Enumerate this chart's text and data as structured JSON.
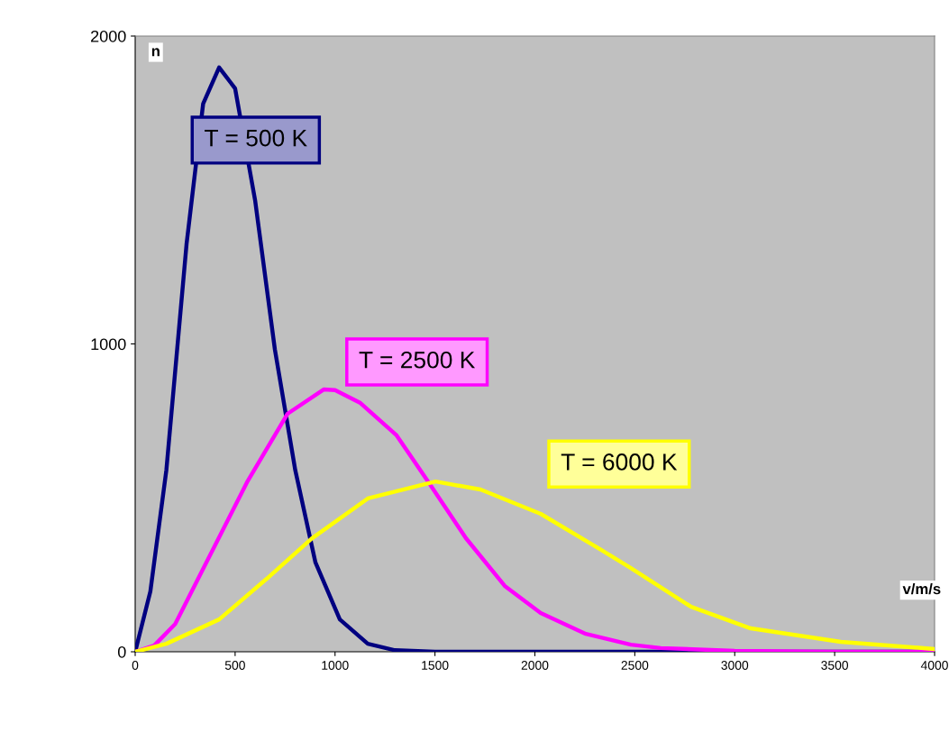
{
  "chart_data": {
    "type": "line",
    "xlabel": "v/m/s",
    "ylabel": "n",
    "xlim": [
      0,
      4000
    ],
    "xticks": [
      0,
      500,
      1000,
      1500,
      2000,
      2500,
      3000,
      3500,
      4000
    ],
    "ylim": [
      0,
      2000
    ],
    "yticks": [
      0,
      1000,
      2000
    ],
    "grid": false,
    "legend": false,
    "marker": "none",
    "line_style": "solid",
    "series": [
      {
        "name": "T = 500 K",
        "color": "#000080",
        "x": [
          0,
          76,
          156,
          257,
          340,
          420,
          500,
          600,
          699,
          801,
          902,
          1024,
          1164,
          1300,
          1500,
          2000,
          3000,
          4000
        ],
        "values": [
          0,
          196,
          590,
          1324,
          1780,
          1898,
          1830,
          1467,
          982,
          590,
          290,
          105,
          26,
          5,
          0,
          0,
          0,
          0
        ]
      },
      {
        "name": "T = 2500 K",
        "color": "#ff00ff",
        "x": [
          0,
          95,
          200,
          356,
          559,
          762,
          943,
          1000,
          1127,
          1308,
          1474,
          1655,
          1849,
          2029,
          2255,
          2480,
          2630,
          3000,
          3500,
          4000
        ],
        "values": [
          0,
          20,
          90,
          290,
          550,
          773,
          852,
          850,
          808,
          703,
          545,
          369,
          214,
          126,
          58,
          23,
          12,
          3,
          0,
          0
        ]
      },
      {
        "name": "T = 6000 K",
        "color": "#ffff00",
        "x": [
          0,
          156,
          420,
          658,
          882,
          1164,
          1503,
          1728,
          2029,
          2331,
          2480,
          2782,
          3080,
          3531,
          4000
        ],
        "values": [
          0,
          26,
          105,
          237,
          367,
          498,
          553,
          527,
          448,
          331,
          272,
          146,
          76,
          32,
          9
        ]
      }
    ]
  }
}
